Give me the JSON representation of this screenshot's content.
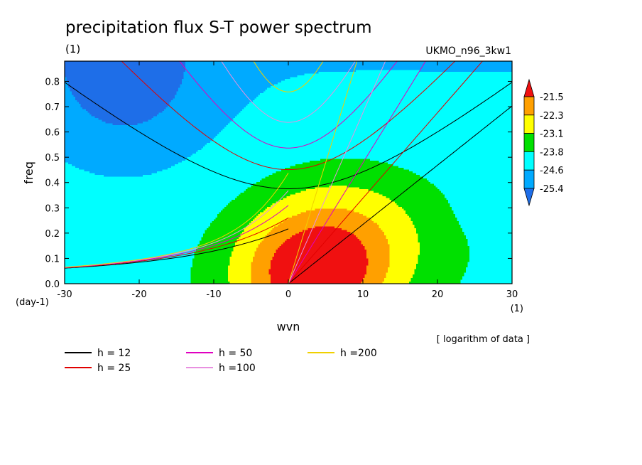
{
  "title": "precipitation flux S-T power spectrum",
  "units_label": "(1)",
  "dataset_label": "UKMO_n96_3kw1",
  "note": "[ logarithm of data ]",
  "chart_data": {
    "type": "contour",
    "xlabel": "wvn",
    "ylabel": "freq",
    "x_unit": "(1)",
    "y_unit": "(day-1)",
    "xlim": [
      -30,
      30
    ],
    "ylim": [
      0,
      0.88
    ],
    "xticks": [
      -30,
      -20,
      -10,
      0,
      10,
      20,
      30
    ],
    "yticks": [
      0.0,
      0.1,
      0.2,
      0.3,
      0.4,
      0.5,
      0.6,
      0.7,
      0.8
    ],
    "colorbar": {
      "levels": [
        -21.5,
        -22.3,
        -23.1,
        -23.8,
        -24.6,
        -25.4
      ],
      "colors": [
        "#f01010",
        "#ffa000",
        "#ffff00",
        "#00e000",
        "#00ffff",
        "#00aaff",
        "#1e6ee8"
      ]
    },
    "dispersion_curves": [
      {
        "label": "h = 12",
        "h": 12,
        "color": "#000000"
      },
      {
        "label": "h = 25",
        "h": 25,
        "color": "#e00000"
      },
      {
        "label": "h = 50",
        "h": 50,
        "color": "#e000c0"
      },
      {
        "label": "h =100",
        "h": 100,
        "color": "#e890e0"
      },
      {
        "label": "h =200",
        "h": 200,
        "color": "#f0d000"
      }
    ]
  }
}
